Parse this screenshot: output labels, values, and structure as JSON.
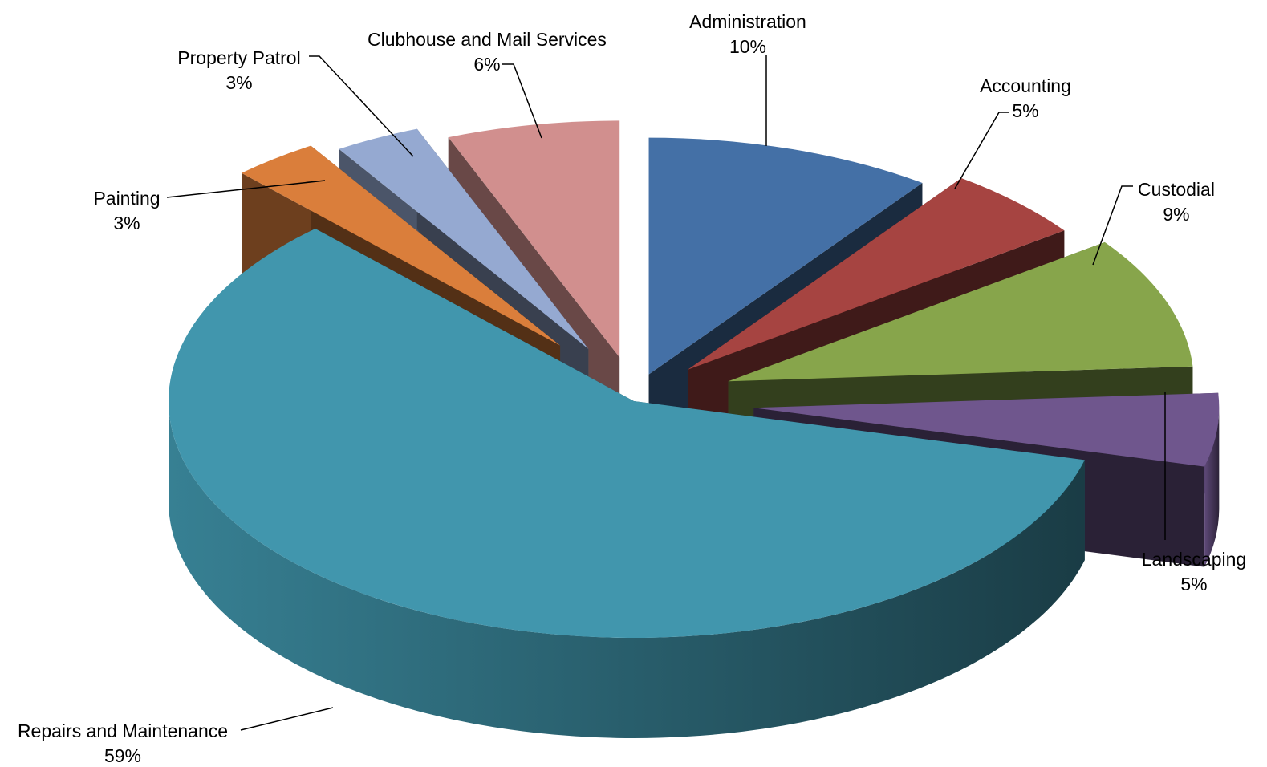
{
  "chart_data": {
    "type": "pie",
    "variant": "3d-exploded",
    "title": "",
    "legend": "none",
    "slices": [
      {
        "label": "Administration",
        "value": 10,
        "value_label": "10%",
        "color": "#4470A6"
      },
      {
        "label": "Accounting",
        "value": 5,
        "value_label": "5%",
        "color": "#A64441"
      },
      {
        "label": "Custodial",
        "value": 9,
        "value_label": "9%",
        "color": "#87A54B"
      },
      {
        "label": "Landscaping",
        "value": 5,
        "value_label": "5%",
        "color": "#6F568D"
      },
      {
        "label": "Repairs and Maintenance",
        "value": 59,
        "value_label": "59%",
        "color": "#4196AD"
      },
      {
        "label": "Painting",
        "value": 3,
        "value_label": "3%",
        "color": "#DA7E3B"
      },
      {
        "label": "Property Patrol",
        "value": 3,
        "value_label": "3%",
        "color": "#95A9D1"
      },
      {
        "label": "Clubhouse and Mail Services",
        "value": 6,
        "value_label": "6%",
        "color": "#D18F8E"
      }
    ]
  }
}
